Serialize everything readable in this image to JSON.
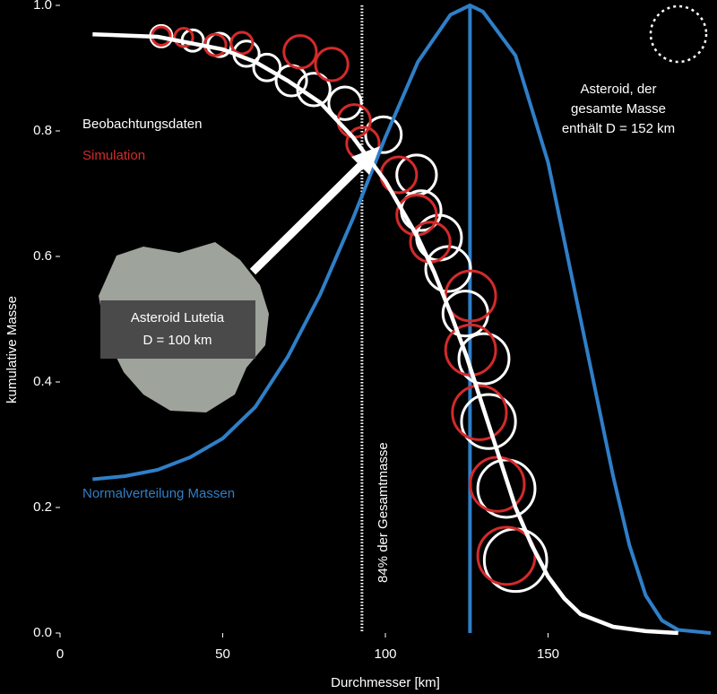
{
  "chart_data": {
    "type": "scatter",
    "xlabel": "Durchmesser [km]",
    "ylabel": "kumulative Masse",
    "xlim": [
      0,
      200
    ],
    "ylim": [
      0,
      1
    ],
    "xticks": [
      0,
      50,
      100,
      150
    ],
    "yticks": [
      {
        "value": 0,
        "label": "0.0"
      },
      {
        "value": 0.2,
        "label": "0.2"
      },
      {
        "value": 0.4,
        "label": "0.4"
      },
      {
        "value": 0.6,
        "label": "0.6"
      },
      {
        "value": 0.8,
        "label": "0.8"
      },
      {
        "value": 1,
        "label": "1.0"
      }
    ],
    "series": [
      {
        "name": "Beobachtungsdaten",
        "type": "bubble",
        "color": "#ffffff",
        "x": [
          31.1,
          40.8,
          49,
          57.3,
          63.6,
          71.1,
          78,
          87.6,
          99.4,
          109.6,
          111,
          116.5,
          119.3,
          124.6,
          130.3,
          131.7,
          137.2,
          140
        ],
        "values": [
          0.951,
          0.944,
          0.937,
          0.923,
          0.901,
          0.88,
          0.866,
          0.844,
          0.794,
          0.73,
          0.673,
          0.63,
          0.58,
          0.509,
          0.437,
          0.337,
          0.23,
          0.116
        ],
        "sizes": [
          3.3,
          3.3,
          3.6,
          3.9,
          4.1,
          4.7,
          5,
          5,
          5.5,
          6.1,
          6.1,
          6.9,
          6.9,
          6.9,
          7.7,
          8.3,
          8.8,
          9.6
        ]
      },
      {
        "name": "Simulation",
        "type": "bubble",
        "color": "#d42a2a",
        "x": [
          31.1,
          38,
          47.7,
          55.9,
          73.8,
          83.5,
          90.4,
          93.1,
          104.1,
          109.6,
          113.8,
          126.2,
          126.2,
          128.9,
          134.4,
          137.2
        ],
        "values": [
          0.951,
          0.949,
          0.937,
          0.94,
          0.926,
          0.906,
          0.816,
          0.78,
          0.73,
          0.666,
          0.623,
          0.537,
          0.451,
          0.351,
          0.237,
          0.123
        ],
        "sizes": [
          2.8,
          2.8,
          3.3,
          3.3,
          5,
          5,
          5,
          5,
          5.5,
          6.1,
          6.1,
          7.7,
          7.7,
          8.3,
          8.3,
          8.8
        ]
      },
      {
        "type": "line",
        "color": "#ffffff",
        "x": [
          10,
          30,
          50,
          60,
          70,
          80,
          90,
          100,
          110,
          115,
          120,
          125,
          130,
          135,
          140,
          145,
          150,
          155,
          160,
          170,
          180,
          190
        ],
        "values": [
          0.954,
          0.95,
          0.93,
          0.91,
          0.88,
          0.845,
          0.79,
          0.72,
          0.63,
          0.575,
          0.51,
          0.44,
          0.36,
          0.28,
          0.2,
          0.14,
          0.09,
          0.055,
          0.03,
          0.01,
          0.003,
          0
        ]
      },
      {
        "name": "Normalverteilung Massen",
        "type": "line",
        "color": "#2f7fc8",
        "x": [
          10,
          20,
          30,
          40,
          50,
          60,
          70,
          80,
          90,
          100,
          110,
          120,
          126,
          130,
          140,
          150,
          160,
          170,
          175,
          180,
          185,
          190,
          200
        ],
        "values": [
          0.245,
          0.25,
          0.26,
          0.28,
          0.31,
          0.36,
          0.44,
          0.54,
          0.66,
          0.79,
          0.91,
          0.985,
          1,
          0.99,
          0.92,
          0.75,
          0.5,
          0.25,
          0.14,
          0.06,
          0.02,
          0.005,
          0
        ]
      }
    ],
    "vlines": [
      {
        "x": 126,
        "color": "#2f7fc8",
        "style": "solid"
      },
      {
        "x": 92.8,
        "color": "#ffffff",
        "style": "dotted",
        "label": "84% der Gesamtmasse"
      }
    ],
    "annotations": [
      {
        "lines": [
          "Asteroid, der",
          "gesamte Masse",
          "enthält D = 152 km"
        ]
      },
      {
        "lines": [
          "Asteroid Lutetia",
          "D = 100 km"
        ]
      }
    ]
  }
}
